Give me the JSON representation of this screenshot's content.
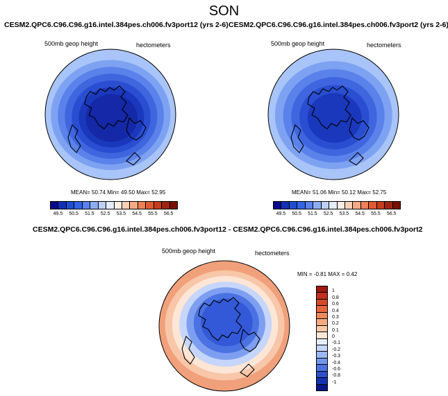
{
  "season": "SON",
  "panels": [
    {
      "title": "CESM2.QPC6.C96.C96.g16.intel.384pes.ch006.fv3port12 (yrs 2-6)",
      "left_label": "500mb geop height",
      "right_label": "hectometers",
      "stats": "MEAN= 50.74  Min= 49.50  Max= 52.95"
    },
    {
      "title": "CESM2.QPC6.C96.C96.g16.intel.384pes.ch006.fv3port2 (yrs 2-6)",
      "left_label": "500mb geop height",
      "right_label": "hectometers",
      "stats": "MEAN= 51.06  Min= 50.12  Max= 52.75"
    }
  ],
  "diff_panel": {
    "title": "CESM2.QPC6.C96.C96.g16.intel.384pes.ch006.fv3port12 - CESM2.QPC6.C96.C96.g16.intel.384pes.ch006.fv3port2",
    "left_label": "500mb geop height",
    "right_label": "hectometers",
    "stats": "MIN = -0.81  MAX =  0.42"
  },
  "chart_data": [
    {
      "type": "heatmap",
      "projection": "north polar stereographic",
      "title": "CESM2.QPC6.C96.C96.g16.intel.384pes.ch006.fv3port12 (yrs 2-6)",
      "field": "500mb geop height",
      "units": "hectometers",
      "mean": 50.74,
      "min": 49.5,
      "max": 52.95,
      "colorbar_ticks": [
        "49.5",
        "50.5",
        "51.5",
        "52.5",
        "53.5",
        "54.5",
        "55.5",
        "56.5"
      ],
      "colorbar_colors": [
        "#0a0a8c",
        "#1430b4",
        "#1e4ed2",
        "#3264e6",
        "#5a82f0",
        "#8cacf5",
        "#bcd0fa",
        "#e4ecfc",
        "#fdeee4",
        "#fbd0b6",
        "#f6aa86",
        "#ee8256",
        "#e05a32",
        "#c83c1e",
        "#a02412",
        "#781006"
      ],
      "colorbar_ticks_text": "",
      "rings": [
        {
          "color": "#a8c4f8",
          "value_band": "52.5-53.0"
        },
        {
          "color": "#7ea2f2",
          "value_band": "52.0-52.5"
        },
        {
          "color": "#5a82ea",
          "value_band": "51.5-52.0"
        },
        {
          "color": "#3f66de",
          "value_band": "51.0-51.5"
        },
        {
          "color": "#2a4ed2",
          "value_band": "50.5-51.0"
        },
        {
          "color": "#1a38bc",
          "value_band": "50.0-50.5"
        },
        {
          "color": "#1428a8",
          "value_band": "49.5-50.0"
        }
      ]
    },
    {
      "type": "heatmap",
      "projection": "north polar stereographic",
      "title": "CESM2.QPC6.C96.C96.g16.intel.384pes.ch006.fv3port2 (yrs 2-6)",
      "field": "500mb geop height",
      "units": "hectometers",
      "mean": 51.06,
      "min": 50.12,
      "max": 52.75,
      "colorbar_ticks": [
        "49.5",
        "50.5",
        "51.5",
        "52.5",
        "53.5",
        "54.5",
        "55.5",
        "56.5"
      ],
      "colorbar_colors": [
        "#0a0a8c",
        "#1430b4",
        "#1e4ed2",
        "#3264e6",
        "#5a82f0",
        "#8cacf5",
        "#bcd0fa",
        "#e4ecfc",
        "#fdeee4",
        "#fbd0b6",
        "#f6aa86",
        "#ee8256",
        "#e05a32",
        "#c83c1e",
        "#a02412",
        "#781006"
      ],
      "rings": [
        {
          "color": "#a8c4f8",
          "value_band": "52.5-53.0"
        },
        {
          "color": "#7ea2f2",
          "value_band": "52.0-52.5"
        },
        {
          "color": "#5a82ea",
          "value_band": "51.5-52.0"
        },
        {
          "color": "#3f66de",
          "value_band": "51.0-51.5"
        },
        {
          "color": "#2a4ed2",
          "value_band": "50.5-51.0"
        },
        {
          "color": "#1a38bc",
          "value_band": "50.0-50.5"
        }
      ]
    },
    {
      "type": "heatmap",
      "projection": "north polar stereographic",
      "title": "CESM2.QPC6.C96.C96.g16.intel.384pes.ch006.fv3port12 - CESM2.QPC6.C96.C96.g16.intel.384pes.ch006.fv3port2",
      "field": "500mb geop height",
      "units": "hectometers",
      "min": -0.81,
      "max": 0.42,
      "colorbar_ticks": [
        "1",
        "0.8",
        "0.6",
        "0.4",
        "0.3",
        "0.2",
        "0.1",
        "0",
        "-0.1",
        "-0.2",
        "-0.3",
        "-0.4",
        "-0.6",
        "-0.8",
        "-1"
      ],
      "colorbar_colors": [
        "#9c1a0c",
        "#c0301c",
        "#d64a2a",
        "#e6673e",
        "#f08a5c",
        "#f6aa82",
        "#fbcaa8",
        "#fde6d6",
        "#e6eefc",
        "#c6d6fa",
        "#9cb8f4",
        "#7296ec",
        "#4c74e0",
        "#2a50cc",
        "#1432b0",
        "#0a1488"
      ],
      "rings": [
        {
          "color": "#f0a07a",
          "value_band": "0.2-0.3"
        },
        {
          "color": "#f8c6a8",
          "value_band": "0.1-0.2"
        },
        {
          "color": "#fde6d6",
          "value_band": "0-0.1"
        },
        {
          "color": "#c6d6fa",
          "value_band": "-0.1-0"
        },
        {
          "color": "#7e9ef0",
          "value_band": "-0.2--0.1"
        },
        {
          "color": "#4a72e2",
          "value_band": "-0.4--0.2"
        },
        {
          "color": "#3358d8",
          "value_band": "-0.6--0.4"
        }
      ]
    }
  ]
}
